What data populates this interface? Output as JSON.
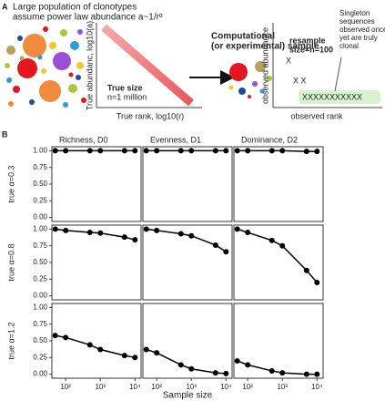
{
  "panel_a": {
    "label": "A",
    "title_lines": [
      "Large population of clonotypes",
      "assume power law  abundance a~1/rᵅ"
    ],
    "true_ylabel": "True abundanc, log10(a)",
    "true_xlabel": "True rank, log10(r)",
    "true_size": "True size",
    "true_n": "n=1 million",
    "sample_lines": [
      "Computational",
      "(or experimental) sample"
    ],
    "obs_ylabel": "observed abundance",
    "obs_xlabel": "observed rank",
    "resample": "resample",
    "resample_n": "size=n=100",
    "x_single": "X",
    "x_pair": "X  X",
    "x_row": "XXXXXXXXXXX",
    "note_lines": [
      "Singleton",
      "sequences",
      "observed once",
      "yet are truly",
      "clonal"
    ]
  },
  "chart_data": {
    "type": "line",
    "label": "B",
    "columns": [
      "Richness, D0",
      "Evenness, D1",
      "Dominance, D2"
    ],
    "rows": [
      "true α=0.3",
      "true α=0.8",
      "true α=1.2"
    ],
    "xlabel": "Sample size",
    "xscale": "log",
    "x": [
      50,
      100,
      500,
      1000,
      5000,
      10000
    ],
    "xlim": [
      40,
      15000
    ],
    "xticks": [
      {
        "value": 100,
        "label": "10²"
      },
      {
        "value": 1000,
        "label": "10³"
      },
      {
        "value": 10000,
        "label": "10⁴"
      }
    ],
    "ylim": [
      -0.06,
      1.06
    ],
    "yticks": [
      {
        "value": 0,
        "label": "0.00"
      },
      {
        "value": 0.25,
        "label": "0.25"
      },
      {
        "value": 0.5,
        "label": "0.50"
      },
      {
        "value": 0.75,
        "label": "0.75"
      },
      {
        "value": 1,
        "label": "1.00"
      }
    ],
    "color": "#000000",
    "panels": [
      {
        "values": [
          1.0,
          1.0,
          1.0,
          1.0,
          1.0,
          1.0
        ]
      },
      {
        "values": [
          1.0,
          1.0,
          1.0,
          1.0,
          1.0,
          1.0
        ]
      },
      {
        "values": [
          1.0,
          1.0,
          1.0,
          1.0,
          0.99,
          0.99
        ]
      },
      {
        "values": [
          1.0,
          0.98,
          0.95,
          0.94,
          0.88,
          0.84
        ]
      },
      {
        "values": [
          1.0,
          0.98,
          0.93,
          0.9,
          0.76,
          0.66
        ]
      },
      {
        "values": [
          1.0,
          0.95,
          0.83,
          0.75,
          0.38,
          0.2
        ]
      },
      {
        "values": [
          0.58,
          0.55,
          0.44,
          0.37,
          0.28,
          0.25
        ]
      },
      {
        "values": [
          0.37,
          0.32,
          0.14,
          0.08,
          0.02,
          0.01
        ]
      },
      {
        "values": [
          0.2,
          0.14,
          0.05,
          0.02,
          0.0,
          0.0
        ]
      }
    ]
  }
}
